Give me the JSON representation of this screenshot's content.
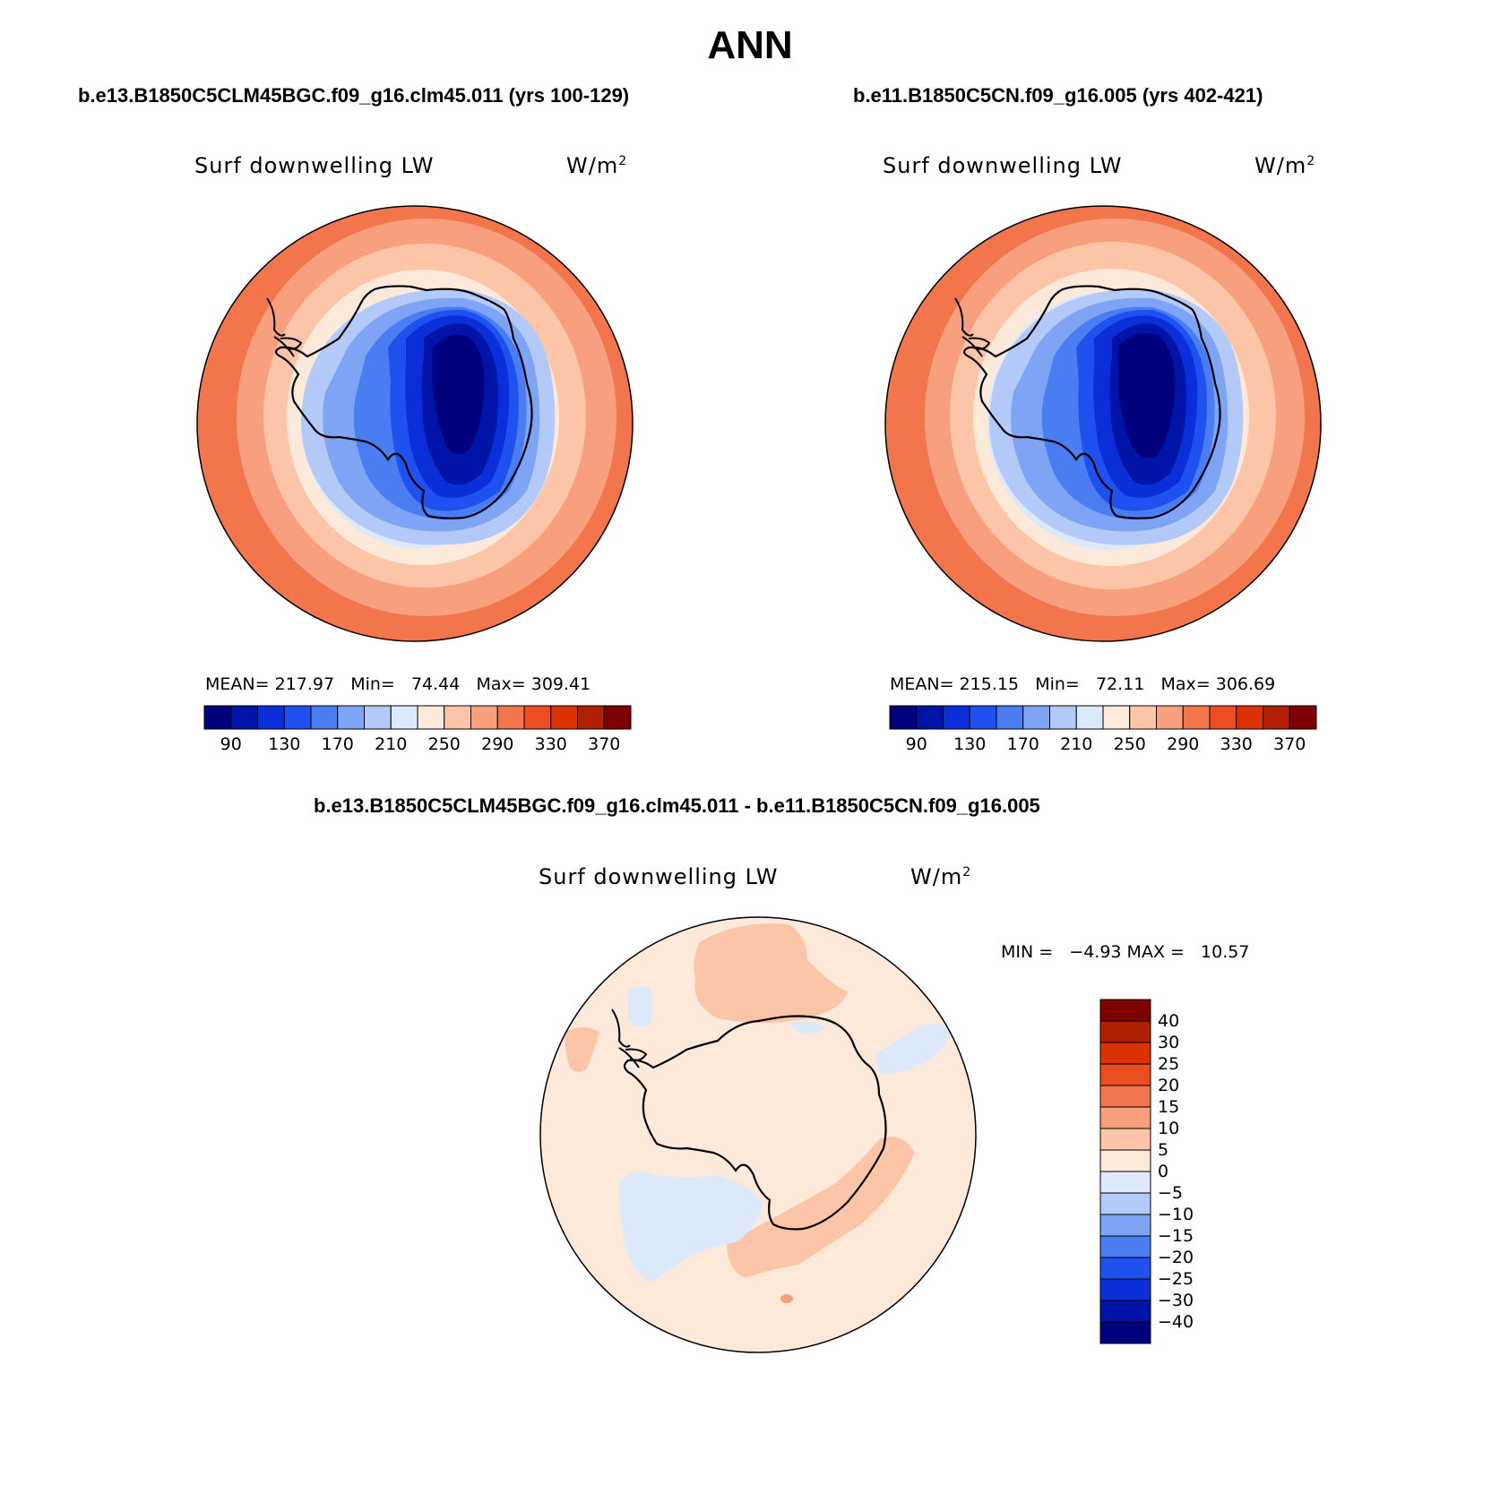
{
  "page_title": "ANN",
  "panels": [
    {
      "case_title": "b.e13.B1850C5CLM45BGC.f09_g16.clm45.011 (yrs 100-129)",
      "variable": "Surf downwelling LW",
      "units_base": "W/m",
      "units_exp": "2",
      "stats": {
        "mean_label": "MEAN=",
        "mean": "217.97",
        "min_label": "Min=",
        "min": "74.44",
        "max_label": "Max=",
        "max": "309.41"
      }
    },
    {
      "case_title": "b.e11.B1850C5CN.f09_g16.005 (yrs 402-421)",
      "variable": "Surf downwelling LW",
      "units_base": "W/m",
      "units_exp": "2",
      "stats": {
        "mean_label": "MEAN=",
        "mean": "215.15",
        "min_label": "Min=",
        "min": "72.11",
        "max_label": "Max=",
        "max": "306.69"
      }
    }
  ],
  "diff_panel": {
    "case_title": "b.e13.B1850C5CLM45BGC.f09_g16.clm45.011 - b.e11.B1850C5CN.f09_g16.005",
    "variable": "Surf downwelling LW",
    "units_base": "W/m",
    "units_exp": "2",
    "minmax": "MIN =   −4.93 MAX =   10.57"
  },
  "chart_data": [
    {
      "type": "heatmap",
      "projection": "polar stereographic (south)",
      "colorbar": {
        "orientation": "horizontal",
        "colors": [
          "#00007f",
          "#0015a8",
          "#0a2fd8",
          "#1f50f0",
          "#4a7df2",
          "#7fa3f5",
          "#b3caf8",
          "#dbe9fb",
          "#fde9da",
          "#fcc5a7",
          "#f8a07d",
          "#f3754c",
          "#ec4d21",
          "#dc3200",
          "#b02000",
          "#7f0000"
        ],
        "tick_labels": [
          "90",
          "130",
          "170",
          "210",
          "250",
          "290",
          "330",
          "370"
        ]
      },
      "stats": {
        "mean": 217.97,
        "min": 74.44,
        "max": 309.41
      }
    },
    {
      "type": "heatmap",
      "projection": "polar stereographic (south)",
      "colorbar": {
        "orientation": "horizontal",
        "colors": [
          "#00007f",
          "#0015a8",
          "#0a2fd8",
          "#1f50f0",
          "#4a7df2",
          "#7fa3f5",
          "#b3caf8",
          "#dbe9fb",
          "#fde9da",
          "#fcc5a7",
          "#f8a07d",
          "#f3754c",
          "#ec4d21",
          "#dc3200",
          "#b02000",
          "#7f0000"
        ],
        "tick_labels": [
          "90",
          "130",
          "170",
          "210",
          "250",
          "290",
          "330",
          "370"
        ]
      },
      "stats": {
        "mean": 215.15,
        "min": 72.11,
        "max": 306.69
      }
    },
    {
      "type": "heatmap",
      "projection": "polar stereographic (south)",
      "colorbar": {
        "orientation": "vertical",
        "colors_top_to_bottom": [
          "#7f0000",
          "#b02000",
          "#dc3200",
          "#ec4d21",
          "#f3754c",
          "#f8a07d",
          "#fcc5a7",
          "#fde9da",
          "#dbe9fb",
          "#b3caf8",
          "#7fa3f5",
          "#4a7df2",
          "#1f50f0",
          "#0a2fd8",
          "#0015a8",
          "#00007f"
        ],
        "tick_labels": [
          "40",
          "30",
          "25",
          "20",
          "15",
          "10",
          "5",
          "0",
          "−5",
          "−10",
          "−15",
          "−20",
          "−25",
          "−30",
          "−40"
        ]
      },
      "stats": {
        "min": -4.93,
        "max": 10.57
      }
    }
  ]
}
